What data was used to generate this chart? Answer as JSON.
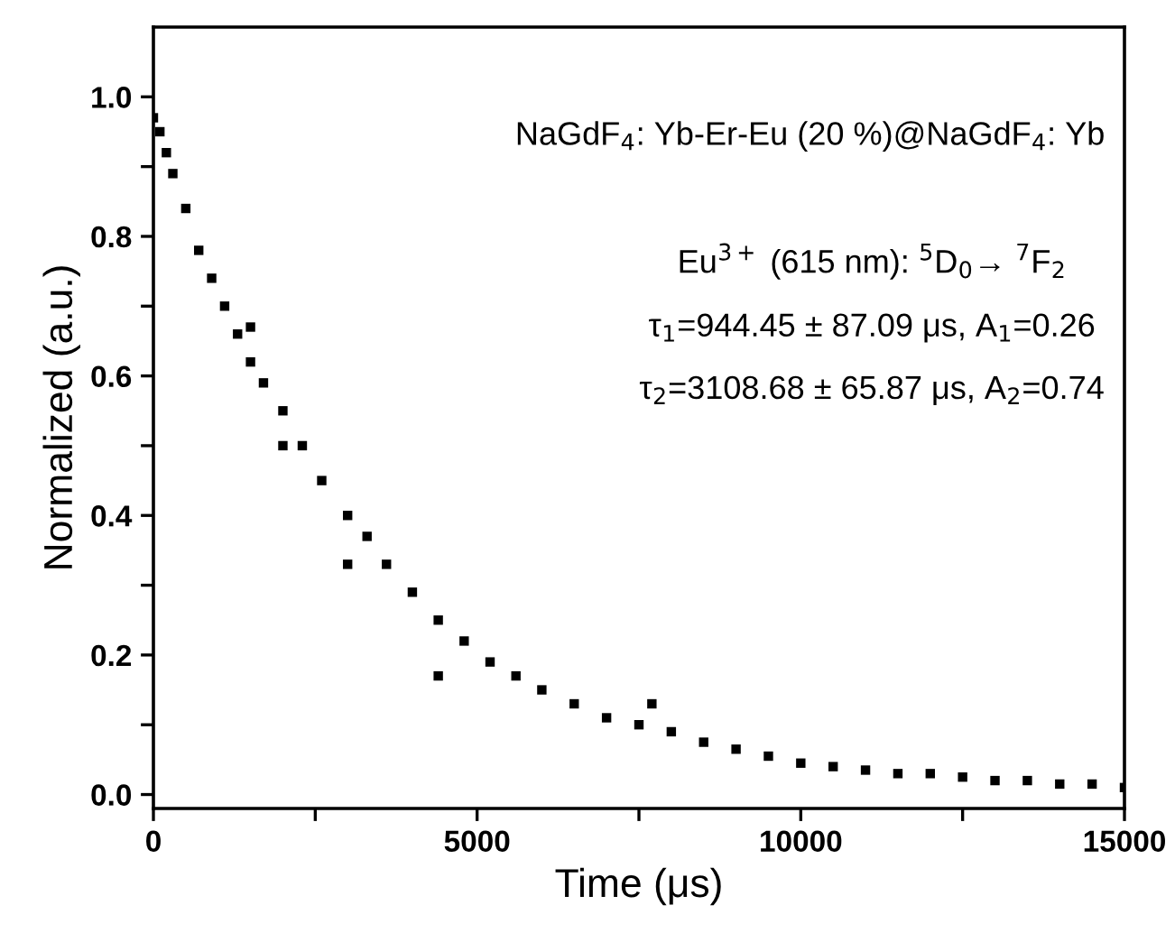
{
  "chart_data": {
    "type": "scatter",
    "xlabel": "Time (μs)",
    "ylabel": "Normalized (a.u.)",
    "annotations": [
      "NaGdF$_{4}$: Yb-Er-Eu (20 %)@NaGdF$_{4}$: Yb",
      "Eu$^{3+}$ (615 nm): $^{5}$D$_{0}$→ $^{7}$F$_{2}$",
      "τ$_{1}$=944.45 ± 87.09 μs, A$_{1}$=0.26",
      "τ$_{2}$=3108.68 ± 65.87 μs, A$_{2}$=0.74"
    ],
    "series": [
      {
        "color": "#000000",
        "x": [
          0,
          100,
          200,
          300,
          500,
          700,
          900,
          1100,
          1300,
          1500,
          1500,
          1700,
          2000,
          2000,
          2300,
          2600,
          3000,
          3000,
          3300,
          3600,
          4000,
          4400,
          4400,
          4800,
          5200,
          5600,
          6000,
          6500,
          7000,
          7500,
          7700,
          8000,
          8500,
          9000,
          9500,
          10000,
          10500,
          11000,
          11500,
          12000,
          12500,
          13000,
          13500,
          14000,
          14500,
          15000
        ],
        "values": [
          0.97,
          0.95,
          0.92,
          0.89,
          0.84,
          0.78,
          0.74,
          0.7,
          0.66,
          0.62,
          0.67,
          0.59,
          0.55,
          0.5,
          0.5,
          0.45,
          0.4,
          0.33,
          0.37,
          0.33,
          0.29,
          0.25,
          0.17,
          0.22,
          0.19,
          0.17,
          0.15,
          0.13,
          0.11,
          0.1,
          0.13,
          0.09,
          0.075,
          0.065,
          0.055,
          0.045,
          0.04,
          0.035,
          0.03,
          0.03,
          0.025,
          0.02,
          0.02,
          0.015,
          0.015,
          0.01
        ]
      }
    ],
    "xlim": [
      0,
      15000
    ],
    "xticks": [
      0,
      {
        "value": 2500,
        "label": null
      },
      5000,
      {
        "value": 7500,
        "label": null
      },
      10000,
      {
        "value": 12500,
        "label": null
      },
      15000
    ],
    "ylim": [
      -0.02,
      1.1
    ],
    "yticks": [
      "0.0",
      {
        "value": 0.1,
        "label": null
      },
      {
        "value": 0.2,
        "label": "0.2"
      },
      {
        "value": 0.3,
        "label": null
      },
      {
        "value": 0.4,
        "label": "0.4"
      },
      {
        "value": 0.5,
        "label": null
      },
      {
        "value": 0.6,
        "label": "0.6"
      },
      {
        "value": 0.7,
        "label": null
      },
      {
        "value": 0.8,
        "label": "0.8"
      },
      {
        "value": 0.9,
        "label": null
      },
      {
        "value": 1.0,
        "label": "1.0"
      }
    ],
    "marker": "square",
    "grid": false,
    "legend": false
  }
}
